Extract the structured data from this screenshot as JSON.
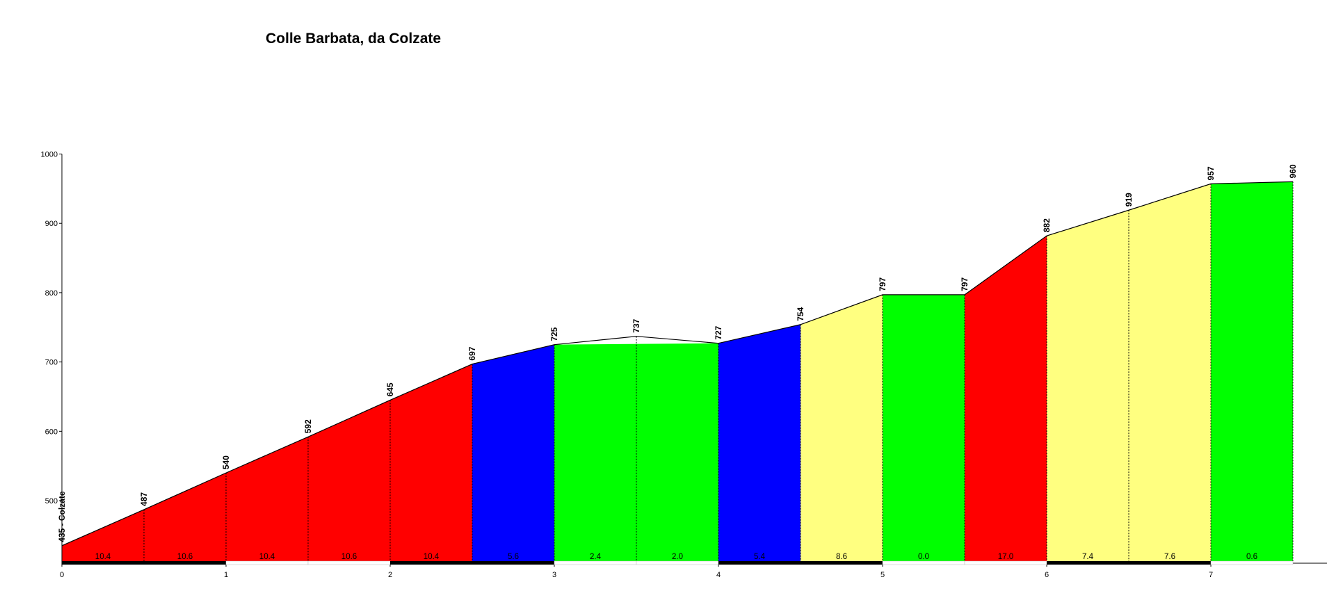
{
  "chart_data": {
    "type": "area",
    "title": "Colle Barbata, da Colzate",
    "xlabel": "",
    "ylabel": "",
    "xlim": [
      0,
      7.5
    ],
    "ylim": [
      410,
      1000
    ],
    "y_ticks": [
      500,
      600,
      700,
      800,
      900,
      1000
    ],
    "y_tick_labels": [
      "500",
      "600",
      "700",
      "800",
      "900",
      "1000"
    ],
    "x_ticks": [
      0,
      1,
      2,
      3,
      4,
      5,
      6,
      7
    ],
    "x_tick_labels": [
      "0",
      "1",
      "2",
      "3",
      "4",
      "5",
      "6",
      "7"
    ],
    "grid": false,
    "points": [
      {
        "x": 0.0,
        "y": 435,
        "label": "435 - Colzate"
      },
      {
        "x": 0.5,
        "y": 487,
        "label": "487"
      },
      {
        "x": 1.0,
        "y": 540,
        "label": "540"
      },
      {
        "x": 1.5,
        "y": 592,
        "label": "592"
      },
      {
        "x": 2.0,
        "y": 645,
        "label": "645"
      },
      {
        "x": 2.5,
        "y": 697,
        "label": "697"
      },
      {
        "x": 3.0,
        "y": 725,
        "label": "725"
      },
      {
        "x": 3.5,
        "y": 737,
        "label": "737"
      },
      {
        "x": 4.0,
        "y": 727,
        "label": "727"
      },
      {
        "x": 4.5,
        "y": 754,
        "label": "754"
      },
      {
        "x": 5.0,
        "y": 797,
        "label": "797"
      },
      {
        "x": 5.5,
        "y": 797,
        "label": "797"
      },
      {
        "x": 6.0,
        "y": 882,
        "label": "882"
      },
      {
        "x": 6.5,
        "y": 919,
        "label": "919"
      },
      {
        "x": 7.0,
        "y": 957,
        "label": "957"
      },
      {
        "x": 7.5,
        "y": 960,
        "label": "960"
      }
    ],
    "color_bands": [
      {
        "x0": 0.0,
        "x1": 2.5,
        "color": "#ff0000"
      },
      {
        "x0": 2.5,
        "x1": 3.0,
        "color": "#0000ff"
      },
      {
        "x0": 3.0,
        "x1": 4.0,
        "color": "#00ff00"
      },
      {
        "x0": 4.0,
        "x1": 4.5,
        "color": "#0000ff"
      },
      {
        "x0": 4.5,
        "x1": 5.0,
        "color": "#ffff80"
      },
      {
        "x0": 5.0,
        "x1": 5.5,
        "color": "#00ff00"
      },
      {
        "x0": 5.5,
        "x1": 6.0,
        "color": "#ff0000"
      },
      {
        "x0": 6.0,
        "x1": 7.0,
        "color": "#ffff80"
      },
      {
        "x0": 7.0,
        "x1": 7.5,
        "color": "#00ff00"
      }
    ],
    "gradients": [
      "10.4",
      "10.6",
      "10.4",
      "10.6",
      "10.4",
      "5.6",
      "2.4",
      "2.0",
      "5.4",
      "8.6",
      "0.0",
      "17.0",
      "7.4",
      "7.6",
      "0.6"
    ],
    "km_bar_colors": [
      "#000000",
      "#ffffff"
    ]
  }
}
